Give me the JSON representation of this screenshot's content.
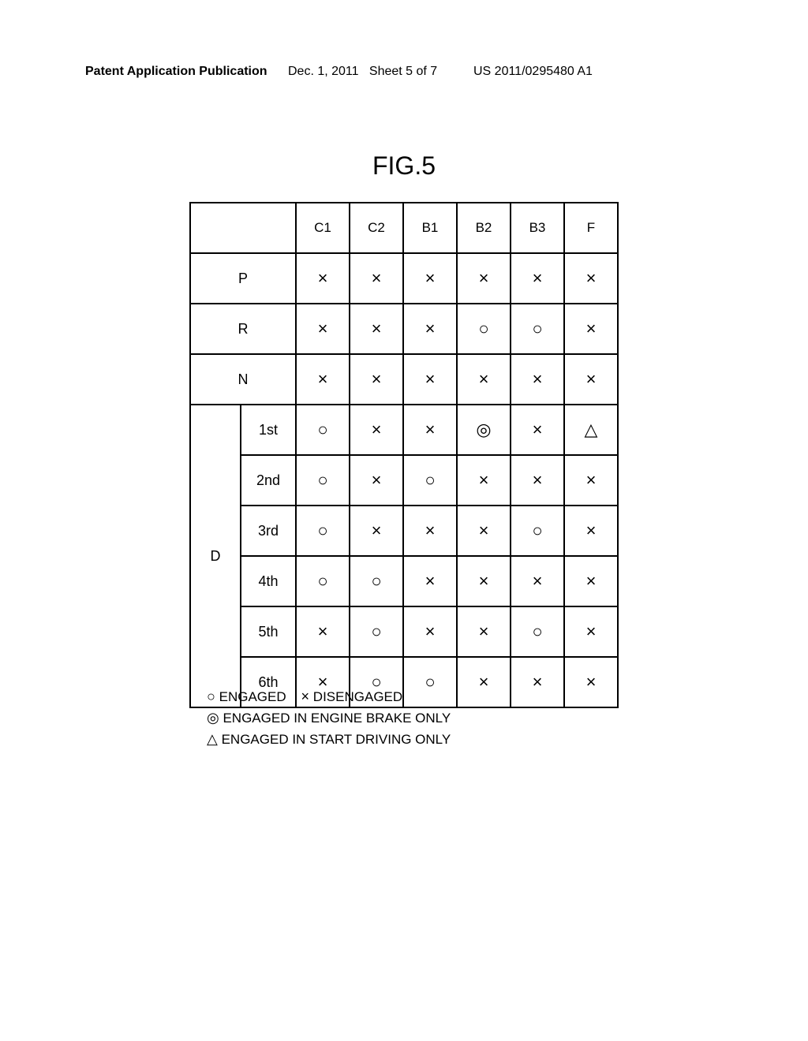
{
  "header": {
    "left": "Patent Application Publication",
    "mid": "Dec. 1, 2011",
    "sheet": "Sheet 5 of 7",
    "right": "US 2011/0295480 A1"
  },
  "figure_title": "FIG.5",
  "table": {
    "columns": [
      "C1",
      "C2",
      "B1",
      "B2",
      "B3",
      "F"
    ],
    "rows": [
      {
        "label": "P",
        "sub": null,
        "cells": [
          "×",
          "×",
          "×",
          "×",
          "×",
          "×"
        ]
      },
      {
        "label": "R",
        "sub": null,
        "cells": [
          "×",
          "×",
          "×",
          "○",
          "○",
          "×"
        ]
      },
      {
        "label": "N",
        "sub": null,
        "cells": [
          "×",
          "×",
          "×",
          "×",
          "×",
          "×"
        ]
      },
      {
        "label": "D",
        "sub": "1st",
        "cells": [
          "○",
          "×",
          "×",
          "◎",
          "×",
          "△"
        ]
      },
      {
        "label": "D",
        "sub": "2nd",
        "cells": [
          "○",
          "×",
          "○",
          "×",
          "×",
          "×"
        ]
      },
      {
        "label": "D",
        "sub": "3rd",
        "cells": [
          "○",
          "×",
          "×",
          "×",
          "○",
          "×"
        ]
      },
      {
        "label": "D",
        "sub": "4th",
        "cells": [
          "○",
          "○",
          "×",
          "×",
          "×",
          "×"
        ]
      },
      {
        "label": "D",
        "sub": "5th",
        "cells": [
          "×",
          "○",
          "×",
          "×",
          "○",
          "×"
        ]
      },
      {
        "label": "D",
        "sub": "6th",
        "cells": [
          "×",
          "○",
          "○",
          "×",
          "×",
          "×"
        ]
      }
    ]
  },
  "legend": {
    "engaged_sym": "○",
    "engaged_text": "ENGAGED",
    "disengaged_sym": "×",
    "disengaged_text": "DISENGAGED",
    "brake_sym": "◎",
    "brake_text": "ENGAGED IN ENGINE BRAKE ONLY",
    "start_sym": "△",
    "start_text": "ENGAGED IN START DRIVING ONLY"
  }
}
